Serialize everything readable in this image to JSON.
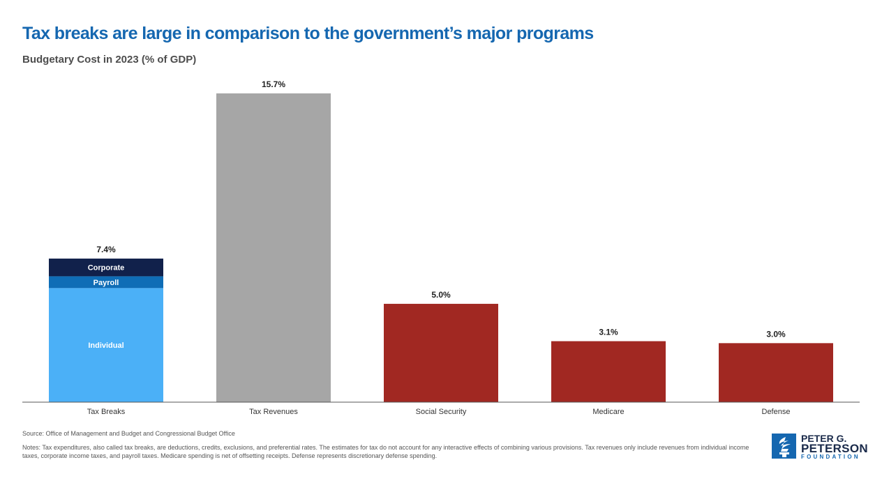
{
  "header": {
    "title": "Tax breaks are large in comparison to the government’s major programs",
    "subtitle": "Budgetary Cost in 2023 (% of GDP)"
  },
  "chart_data": {
    "type": "bar",
    "stacked": true,
    "categories": [
      "Tax Breaks",
      "Tax Revenues",
      "Social Security",
      "Medicare",
      "Defense"
    ],
    "totals": [
      7.4,
      15.7,
      5.0,
      3.1,
      3.0
    ],
    "total_labels": [
      "7.4%",
      "15.7%",
      "5.0%",
      "3.1%",
      "3.0%"
    ],
    "tax_break_components": [
      {
        "name": "Individual",
        "value": 5.8,
        "color": "#4bb0f7"
      },
      {
        "name": "Payroll",
        "value": 0.6,
        "color": "#0f6db6"
      },
      {
        "name": "Corporate",
        "value": 0.9,
        "color": "#11214b"
      }
    ],
    "bar_colors": [
      "#4bb0f7",
      "#a6a6a6",
      "#a12822",
      "#a12822",
      "#a12822"
    ],
    "ylim": [
      0,
      15.7
    ],
    "grid": false,
    "xlabel": "",
    "ylabel": ""
  },
  "footer": {
    "source": "Source: Office of Management and Budget and Congressional Budget Office",
    "notes": "Notes: Tax expenditures, also called tax breaks, are deductions, credits, exclusions, and preferential rates. The estimates for tax do not account for any interactive effects of combining various provisions. Tax revenues only include revenues from individual income taxes, corporate income taxes, and payroll taxes. Medicare spending is net of offsetting receipts. Defense represents discretionary defense spending."
  },
  "logo": {
    "line1": "PETER G.",
    "line2": "PETERSON",
    "line3": "FOUNDATION",
    "icon": "torch-icon",
    "color": "#1567b0"
  }
}
